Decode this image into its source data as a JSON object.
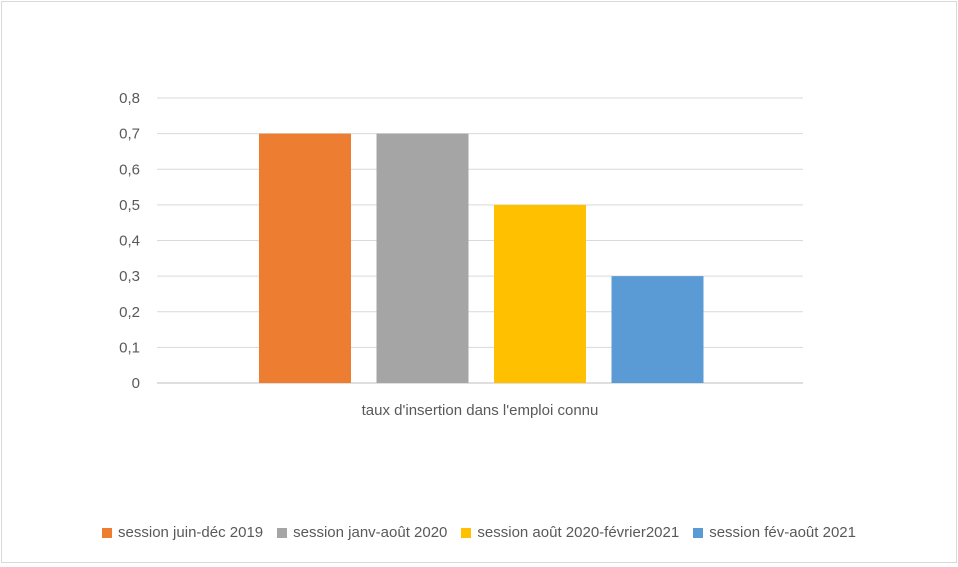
{
  "chart_data": {
    "type": "bar",
    "title": "",
    "xlabel": "",
    "ylabel": "",
    "categories": [
      "taux d'insertion dans l'emploi connu"
    ],
    "series": [
      {
        "name": "session juin-déc 2019",
        "values": [
          0.7
        ],
        "color": "#ED7D31"
      },
      {
        "name": "session janv-août 2020",
        "values": [
          0.7
        ],
        "color": "#A5A5A5"
      },
      {
        "name": "session août 2020-février2021",
        "values": [
          0.5
        ],
        "color": "#FFC000"
      },
      {
        "name": "session fév-août 2021",
        "values": [
          0.3
        ],
        "color": "#5B9BD5"
      }
    ],
    "ylim": [
      0,
      0.8
    ],
    "yticks": [
      0,
      0.1,
      0.2,
      0.3,
      0.4,
      0.5,
      0.6,
      0.7,
      0.8
    ],
    "ytick_labels": [
      "0",
      "0,1",
      "0,2",
      "0,3",
      "0,4",
      "0,5",
      "0,6",
      "0,7",
      "0,8"
    ],
    "grid": true,
    "legend_position": "bottom"
  }
}
